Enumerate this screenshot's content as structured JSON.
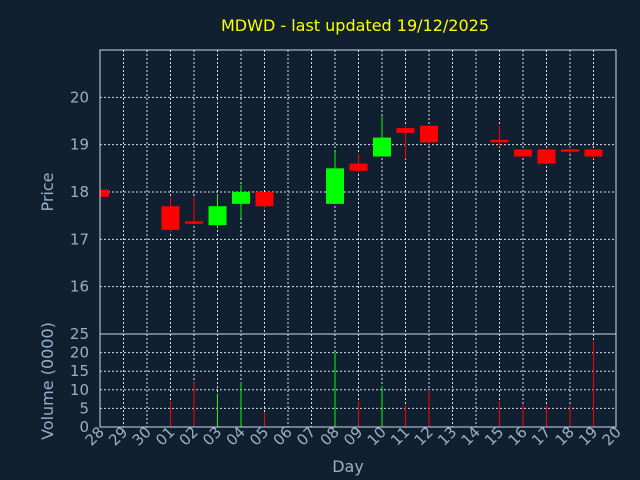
{
  "chart_data": {
    "type": "candlestick",
    "title": "MDWD - last updated 19/12/2025",
    "xlabel": "Day",
    "price_panel": {
      "ylabel": "Price",
      "ylim": [
        15.0,
        21.0
      ],
      "yticks": [
        16,
        17,
        18,
        19,
        20
      ],
      "grid": true
    },
    "volume_panel": {
      "ylabel": "Volume (0000)",
      "ylim": [
        0,
        25
      ],
      "yticks": [
        0,
        5,
        10,
        15,
        20,
        25
      ],
      "grid": true
    },
    "x_tick_labels": [
      "28",
      "29",
      "30",
      "01",
      "02",
      "03",
      "04",
      "05",
      "06",
      "07",
      "08",
      "09",
      "10",
      "11",
      "12",
      "13",
      "14",
      "15",
      "16",
      "17",
      "18",
      "19",
      "20"
    ],
    "colors": {
      "up": "#00ff00",
      "down": "#ff0000"
    },
    "candles": [
      {
        "x": 0,
        "open": 18.05,
        "high": 18.05,
        "low": 17.9,
        "close": 17.9,
        "volume": 0
      },
      {
        "x": 3,
        "open": 17.7,
        "high": 17.9,
        "low": 17.15,
        "close": 17.2,
        "volume": 7
      },
      {
        "x": 4,
        "open": 17.38,
        "high": 17.9,
        "low": 17.35,
        "close": 17.33,
        "volume": 12
      },
      {
        "x": 5,
        "open": 17.3,
        "high": 17.95,
        "low": 17.25,
        "close": 17.7,
        "volume": 9
      },
      {
        "x": 6,
        "open": 17.75,
        "high": 18.15,
        "low": 17.45,
        "close": 18.0,
        "volume": 12
      },
      {
        "x": 7,
        "open": 18.0,
        "high": 18.0,
        "low": 17.65,
        "close": 17.7,
        "volume": 4
      },
      {
        "x": 10,
        "open": 17.75,
        "high": 18.85,
        "low": 17.75,
        "close": 18.5,
        "volume": 20
      },
      {
        "x": 11,
        "open": 18.6,
        "high": 18.8,
        "low": 18.4,
        "close": 18.45,
        "volume": 7
      },
      {
        "x": 12,
        "open": 18.75,
        "high": 19.6,
        "low": 18.75,
        "close": 19.15,
        "volume": 11
      },
      {
        "x": 13,
        "open": 19.35,
        "high": 19.4,
        "low": 18.7,
        "close": 19.25,
        "volume": 6
      },
      {
        "x": 14,
        "open": 19.4,
        "high": 19.4,
        "low": 19.0,
        "close": 19.05,
        "volume": 10
      },
      {
        "x": 17,
        "open": 19.1,
        "high": 19.4,
        "low": 18.95,
        "close": 19.05,
        "volume": 7
      },
      {
        "x": 18,
        "open": 18.9,
        "high": 18.9,
        "low": 18.75,
        "close": 18.75,
        "volume": 6
      },
      {
        "x": 19,
        "open": 18.9,
        "high": 18.9,
        "low": 18.6,
        "close": 18.6,
        "volume": 6
      },
      {
        "x": 20,
        "open": 18.9,
        "high": 18.95,
        "low": 18.8,
        "close": 18.85,
        "volume": 6
      },
      {
        "x": 21,
        "open": 18.9,
        "high": 18.9,
        "low": 18.7,
        "close": 18.75,
        "volume": 23
      }
    ]
  }
}
